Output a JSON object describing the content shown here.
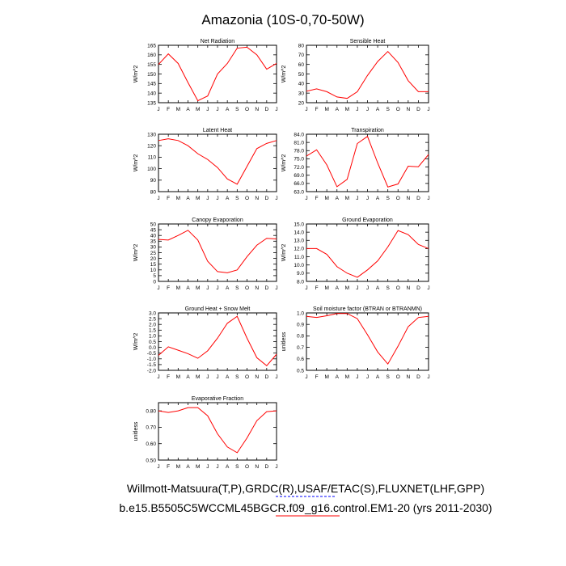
{
  "title": "Amazonia (10S-0,70-50W)",
  "footer": {
    "line1": "Willmott-Matsuura(T,P),GRDC(R),USAF/ETAC(S),FLUXNET(LHF,GPP)",
    "line2": "b.e15.B5505C5WCCML45BGCR.f09_g16.control.EM1-20 (yrs 2011-2030)"
  },
  "colors": {
    "series": "#ff0000",
    "axis": "#000000",
    "underline1": "#0000ff",
    "underline2": "#ff0000"
  },
  "chart_data": [
    {
      "type": "line",
      "title": "Net Radiation",
      "ylabel": "W/m^2",
      "categories": [
        "J",
        "F",
        "M",
        "A",
        "M",
        "J",
        "J",
        "A",
        "S",
        "O",
        "N",
        "D",
        "J"
      ],
      "ylim": [
        135,
        165
      ],
      "yticks": [
        135,
        140,
        145,
        150,
        155,
        160,
        165
      ],
      "ytick_labels": [
        "135",
        "140",
        "145",
        "150",
        "155",
        "160",
        "165"
      ],
      "values": [
        155,
        160.5,
        155.5,
        145.5,
        136,
        138.5,
        150,
        155.5,
        163.5,
        164,
        160,
        152.5,
        155.5
      ]
    },
    {
      "type": "line",
      "title": "Sensible Heat",
      "ylabel": "W/m^2",
      "categories": [
        "J",
        "F",
        "M",
        "A",
        "M",
        "J",
        "J",
        "A",
        "S",
        "O",
        "N",
        "D",
        "J"
      ],
      "ylim": [
        20,
        80
      ],
      "yticks": [
        20,
        30,
        40,
        50,
        60,
        70,
        80
      ],
      "ytick_labels": [
        "20",
        "30",
        "40",
        "50",
        "60",
        "70",
        "80"
      ],
      "values": [
        32,
        34.5,
        31.5,
        26,
        24.5,
        31.5,
        48.5,
        63,
        73.5,
        62,
        43,
        31.5,
        31.5
      ]
    },
    {
      "type": "line",
      "title": "Latent Heat",
      "ylabel": "W/m^2",
      "categories": [
        "J",
        "F",
        "M",
        "A",
        "M",
        "J",
        "J",
        "A",
        "S",
        "O",
        "N",
        "D",
        "J"
      ],
      "ylim": [
        80,
        130
      ],
      "yticks": [
        80,
        90,
        100,
        110,
        120,
        130
      ],
      "ytick_labels": [
        "80",
        "90",
        "100",
        "110",
        "120",
        "130"
      ],
      "values": [
        124.5,
        126,
        124.5,
        120,
        113,
        108,
        101,
        91,
        86.5,
        102,
        117.5,
        122,
        124.5
      ]
    },
    {
      "type": "line",
      "title": "Transpiration",
      "ylabel": "W/m^2",
      "categories": [
        "J",
        "F",
        "M",
        "A",
        "M",
        "J",
        "J",
        "A",
        "S",
        "O",
        "N",
        "D",
        "J"
      ],
      "ylim": [
        63,
        84
      ],
      "yticks": [
        63,
        66,
        69,
        72,
        75,
        78,
        81,
        84
      ],
      "ytick_labels": [
        "63.0",
        "66.0",
        "69.0",
        "72.0",
        "75.0",
        "78.0",
        "81.0",
        "84.0"
      ],
      "values": [
        76,
        78.3,
        72.8,
        64.8,
        67.5,
        80.6,
        83.2,
        73.5,
        64.7,
        65.8,
        72.3,
        72.1,
        76.6
      ]
    },
    {
      "type": "line",
      "title": "Canopy Evaporation",
      "ylabel": "W/m^2",
      "categories": [
        "J",
        "F",
        "M",
        "A",
        "M",
        "J",
        "J",
        "A",
        "S",
        "O",
        "N",
        "D",
        "J"
      ],
      "ylim": [
        0,
        50
      ],
      "yticks": [
        0,
        5,
        10,
        15,
        20,
        25,
        30,
        35,
        40,
        45,
        50
      ],
      "ytick_labels": [
        "0",
        "5",
        "10",
        "15",
        "20",
        "25",
        "30",
        "35",
        "40",
        "45",
        "50"
      ],
      "values": [
        36.5,
        36,
        40,
        44.5,
        36,
        17.5,
        8.5,
        7.5,
        10,
        21.5,
        31.5,
        37.5,
        37
      ]
    },
    {
      "type": "line",
      "title": "Ground Evaporation",
      "ylabel": "W/m^2",
      "categories": [
        "J",
        "F",
        "M",
        "A",
        "M",
        "J",
        "J",
        "A",
        "S",
        "O",
        "N",
        "D",
        "J"
      ],
      "ylim": [
        8,
        15
      ],
      "yticks": [
        8,
        9,
        10,
        11,
        12,
        13,
        14,
        15
      ],
      "ytick_labels": [
        "8.0",
        "9.0",
        "10.0",
        "11.0",
        "12.0",
        "13.0",
        "14.0",
        "15.0"
      ],
      "values": [
        12,
        12,
        11.3,
        9.8,
        9,
        8.5,
        9.4,
        10.5,
        12.2,
        14.2,
        13.7,
        12.5,
        12
      ]
    },
    {
      "type": "line",
      "title": "Ground Heat + Snow Melt",
      "ylabel": "W/m^2",
      "categories": [
        "J",
        "F",
        "M",
        "A",
        "M",
        "J",
        "J",
        "A",
        "S",
        "O",
        "N",
        "D",
        "J"
      ],
      "ylim": [
        -2,
        3
      ],
      "yticks": [
        -2,
        -1.5,
        -1,
        -0.5,
        0,
        0.5,
        1,
        1.5,
        2,
        2.5,
        3
      ],
      "ytick_labels": [
        "-2.0",
        "-1.5",
        "-1.0",
        "-0.5",
        "0.0",
        "0.5",
        "1.0",
        "1.5",
        "2.0",
        "2.5",
        "3.0"
      ],
      "values": [
        -0.7,
        0.05,
        -0.25,
        -0.55,
        -0.95,
        -0.3,
        0.8,
        2.1,
        2.7,
        0.8,
        -0.9,
        -1.6,
        -0.6
      ]
    },
    {
      "type": "line",
      "title": "Soil moisture factor (BTRAN or BTRANMN)",
      "ylabel": "unitless",
      "categories": [
        "J",
        "F",
        "M",
        "A",
        "M",
        "J",
        "J",
        "A",
        "S",
        "O",
        "N",
        "D",
        "J"
      ],
      "ylim": [
        0.5,
        1.0
      ],
      "yticks": [
        0.5,
        0.6,
        0.7,
        0.8,
        0.9,
        1.0
      ],
      "ytick_labels": [
        "0.5",
        "0.6",
        "0.7",
        "0.8",
        "0.9",
        "1.0"
      ],
      "values": [
        0.97,
        0.96,
        0.975,
        0.995,
        0.995,
        0.95,
        0.81,
        0.66,
        0.555,
        0.71,
        0.88,
        0.96,
        0.97
      ]
    },
    {
      "type": "line",
      "title": "Evaporative Fraction",
      "ylabel": "unitless",
      "categories": [
        "J",
        "F",
        "M",
        "A",
        "M",
        "J",
        "J",
        "A",
        "S",
        "O",
        "N",
        "D",
        "J"
      ],
      "ylim": [
        0.5,
        0.85
      ],
      "yticks": [
        0.5,
        0.6,
        0.7,
        0.8
      ],
      "ytick_labels": [
        "0.50",
        "0.60",
        "0.70",
        "0.80"
      ],
      "values": [
        0.8,
        0.79,
        0.8,
        0.82,
        0.82,
        0.77,
        0.66,
        0.58,
        0.545,
        0.635,
        0.74,
        0.795,
        0.8
      ]
    }
  ]
}
